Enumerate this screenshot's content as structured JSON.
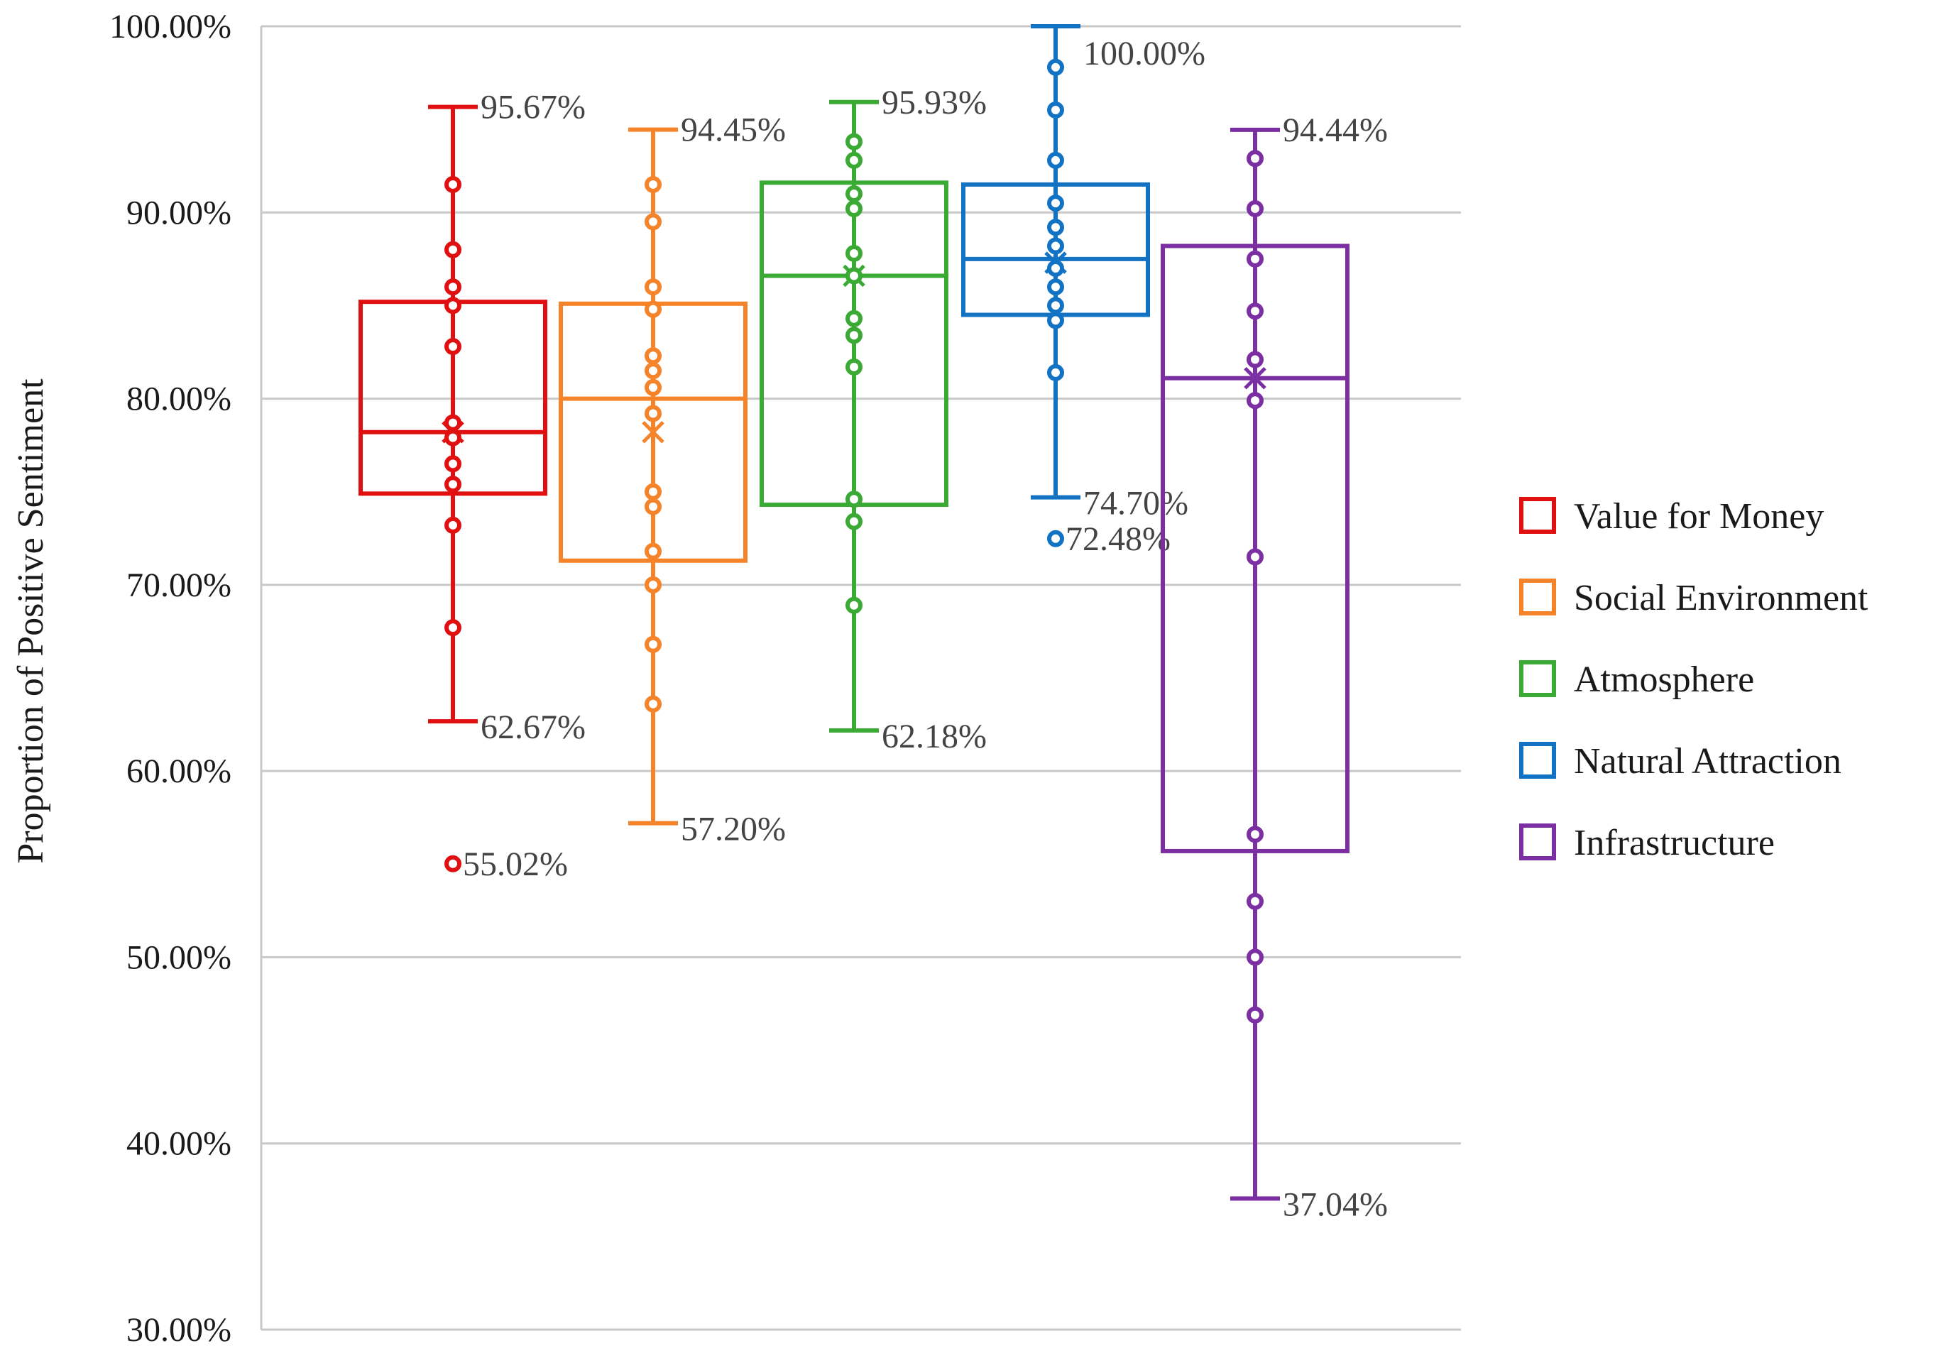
{
  "chart_data": {
    "type": "boxplot",
    "title": "",
    "xlabel": "",
    "ylabel": "Proportion of Positive Sentiment",
    "ylim": [
      30,
      100
    ],
    "yticks": [
      30,
      40,
      50,
      60,
      70,
      80,
      90,
      100
    ],
    "ytick_labels": [
      "30.00%",
      "40.00%",
      "50.00%",
      "60.00%",
      "70.00%",
      "80.00%",
      "90.00%",
      "100.00%"
    ],
    "grid": true,
    "legend_position": "right",
    "series": [
      {
        "name": "Value for Money",
        "color": "#e01010",
        "q1": 74.9,
        "median": 78.2,
        "q3": 85.2,
        "mean": 78.2,
        "whisker_low": 62.67,
        "whisker_high": 95.67,
        "whisker_low_label": "62.67%",
        "whisker_high_label": "95.67%",
        "points": [
          91.5,
          88.0,
          86.0,
          85.0,
          82.8,
          78.7,
          77.9,
          76.5,
          75.4,
          73.2,
          67.7
        ],
        "outliers": [
          55.02
        ],
        "outlier_labels": [
          "55.02%"
        ]
      },
      {
        "name": "Social Environment",
        "color": "#f5832a",
        "q1": 71.3,
        "median": 80.0,
        "q3": 85.1,
        "mean": 78.2,
        "whisker_low": 57.2,
        "whisker_high": 94.45,
        "whisker_low_label": "57.20%",
        "whisker_high_label": "94.45%",
        "points": [
          91.5,
          89.5,
          86.0,
          84.8,
          82.3,
          81.5,
          80.6,
          79.2,
          75.0,
          74.2,
          71.8,
          70.0,
          66.8,
          63.6
        ],
        "outliers": [],
        "outlier_labels": []
      },
      {
        "name": "Atmosphere",
        "color": "#3aaa35",
        "q1": 74.3,
        "median": 86.6,
        "q3": 91.6,
        "mean": 86.6,
        "whisker_low": 62.18,
        "whisker_high": 95.93,
        "whisker_low_label": "62.18%",
        "whisker_high_label": "95.93%",
        "points": [
          93.8,
          92.8,
          91.0,
          90.2,
          87.8,
          86.6,
          84.3,
          83.4,
          81.7,
          74.6,
          73.4,
          68.9
        ],
        "outliers": [],
        "outlier_labels": []
      },
      {
        "name": "Natural Attraction",
        "color": "#1273c4",
        "q1": 84.5,
        "median": 87.5,
        "q3": 91.5,
        "mean": 87.3,
        "whisker_low": 74.7,
        "whisker_high": 100.0,
        "whisker_low_label": "74.70%",
        "whisker_high_label": "100.00%",
        "points": [
          97.8,
          95.5,
          92.8,
          90.5,
          89.2,
          88.2,
          87.0,
          86.0,
          85.0,
          84.2,
          81.4
        ],
        "outliers": [
          72.48
        ],
        "outlier_labels": [
          "72.48%"
        ]
      },
      {
        "name": "Infrastructure",
        "color": "#7b2fa2",
        "q1": 55.7,
        "median": 81.1,
        "q3": 88.2,
        "mean": 81.1,
        "whisker_low": 37.04,
        "whisker_high": 94.44,
        "whisker_low_label": "37.04%",
        "whisker_high_label": "94.44%",
        "points": [
          92.9,
          90.2,
          87.5,
          84.7,
          82.1,
          79.9,
          71.5,
          56.6,
          53.0,
          50.0,
          46.9
        ],
        "outliers": [],
        "outlier_labels": []
      }
    ]
  }
}
